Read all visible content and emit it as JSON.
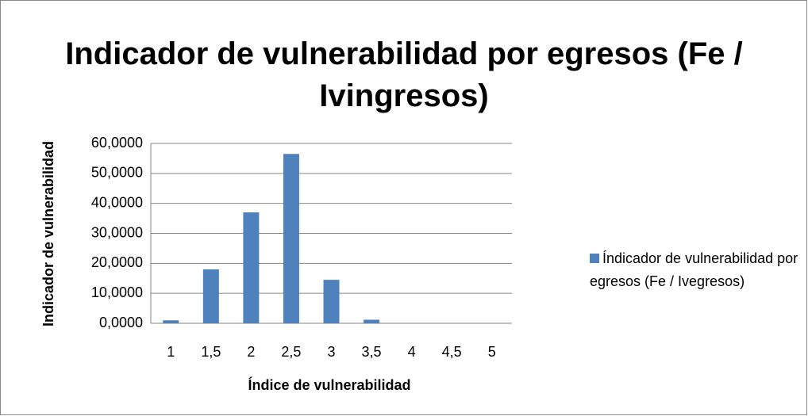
{
  "chart_data": {
    "type": "bar",
    "title": "Indicador de vulnerabilidad por egresos (Fe / Ivingresos)",
    "x_label": "Índice de vulnerabilidad",
    "y_label": "Indicador de vulnerabilidad",
    "categories": [
      "1",
      "1,5",
      "2",
      "2,5",
      "3",
      "3,5",
      "4",
      "4,5",
      "5"
    ],
    "series": [
      {
        "name": "Índicador de vulnerabilidad por egresos (Fe / Ivegresos)",
        "color": "#4f81bd",
        "values": [
          1.0,
          18.0,
          37.0,
          56.5,
          14.5,
          1.2,
          0,
          0,
          0
        ]
      }
    ],
    "ylim": [
      0,
      60
    ],
    "yticks": [
      {
        "value": 0,
        "label": "0,0000"
      },
      {
        "value": 10,
        "label": "10,0000"
      },
      {
        "value": 20,
        "label": "20,0000"
      },
      {
        "value": 30,
        "label": "30,0000"
      },
      {
        "value": 40,
        "label": "40,0000"
      },
      {
        "value": 50,
        "label": "50,0000"
      },
      {
        "value": 60,
        "label": "60,0000"
      }
    ],
    "grid": true,
    "legend": "right"
  }
}
